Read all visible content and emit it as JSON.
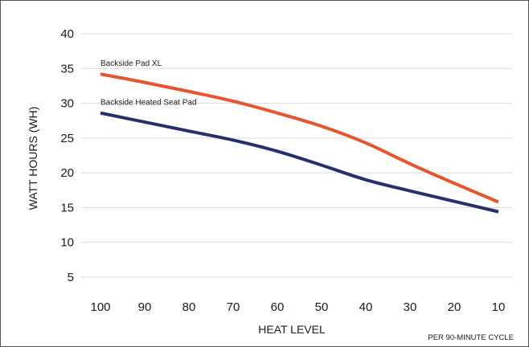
{
  "chart_data": {
    "type": "line",
    "x": [
      100,
      90,
      80,
      70,
      60,
      50,
      40,
      30,
      20,
      10
    ],
    "x_tick_labels": [
      "100",
      "90",
      "80",
      "70",
      "60",
      "50",
      "40",
      "30",
      "20",
      "10"
    ],
    "xlabel": "HEAT LEVEL",
    "x_reversed": true,
    "ylabel": "WATT HOURS (WH)",
    "ylim": [
      5,
      40
    ],
    "y_ticks": [
      5,
      10,
      15,
      20,
      25,
      30,
      35,
      40
    ],
    "y_tick_labels": [
      "5",
      "10",
      "15",
      "20",
      "25",
      "30",
      "35",
      "40"
    ],
    "grid": "horizontal",
    "footnote": "PER 90-MINUTE CYCLE",
    "series": [
      {
        "name": "Backside Pad XL",
        "color": "#e8542c",
        "values": [
          34.2,
          33.0,
          31.7,
          30.3,
          28.6,
          26.7,
          24.3,
          21.3,
          18.5,
          15.8
        ]
      },
      {
        "name": "Backside Heated Seat Pad",
        "color": "#26306b",
        "values": [
          28.6,
          27.3,
          26.0,
          24.7,
          23.1,
          21.1,
          19.0,
          17.4,
          15.9,
          14.4
        ]
      }
    ]
  }
}
